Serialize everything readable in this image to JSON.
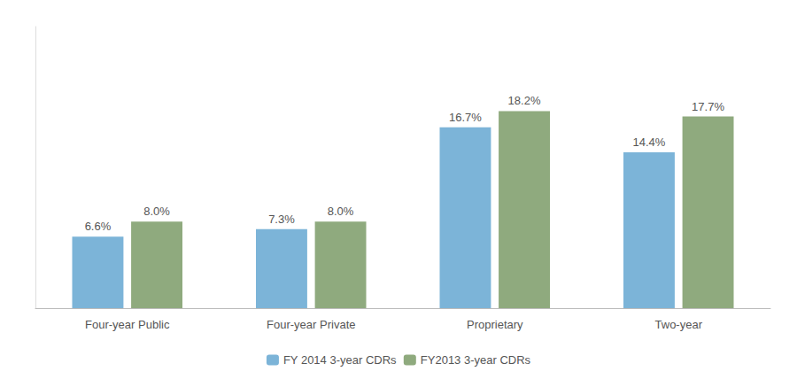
{
  "chart_data": {
    "type": "bar",
    "categories": [
      "Four-year Public",
      "Four-year Private",
      "Proprietary",
      "Two-year"
    ],
    "series": [
      {
        "name": "FY 2014 3-year CDRs",
        "color": "#7cb4d8",
        "values": [
          6.6,
          7.3,
          16.7,
          14.4
        ],
        "value_labels": [
          "6.6%",
          "7.3%",
          "16.7%",
          "14.4%"
        ]
      },
      {
        "name": "FY2013 3-year CDRs",
        "color": "#8faa7e",
        "values": [
          8.0,
          8.0,
          18.2,
          17.7
        ],
        "value_labels": [
          "8.0%",
          "8.0%",
          "18.2%",
          "17.7%"
        ]
      }
    ],
    "ylim": [
      0,
      26
    ],
    "grid": false,
    "legend": "bottom",
    "data_labels": true,
    "tick_labels": "x"
  }
}
